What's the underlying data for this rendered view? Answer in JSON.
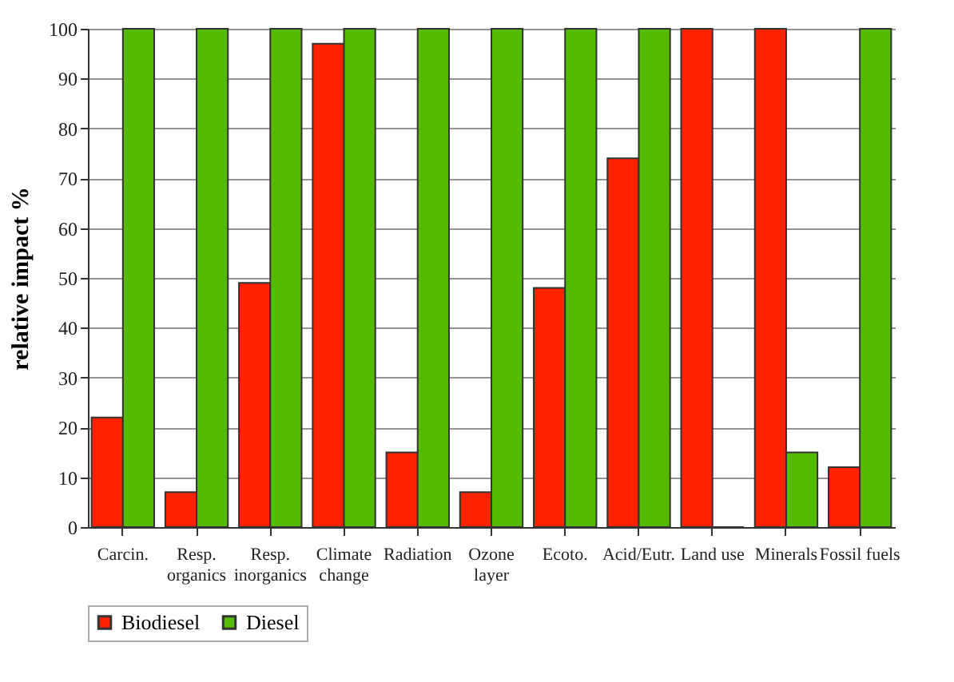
{
  "chart_data": {
    "type": "bar",
    "ylabel": "relative impact %",
    "categories": [
      "Carcin.",
      "Resp.\norganics",
      "Resp.\ninorganics",
      "Climate\nchange",
      "Radiation",
      "Ozone\nlayer",
      "Ecoto.",
      "Acid/Eutr.",
      "Land use",
      "Minerals",
      "Fossil fuels"
    ],
    "series": [
      {
        "name": "Biodiesel",
        "color": "#ff2200",
        "values": [
          22,
          7,
          49,
          97,
          15,
          7,
          48,
          74,
          100,
          100,
          12
        ]
      },
      {
        "name": "Diesel",
        "color": "#55bb00",
        "values": [
          100,
          100,
          100,
          100,
          100,
          100,
          100,
          100,
          0,
          15,
          100
        ]
      }
    ],
    "ylim": [
      0,
      100
    ],
    "yticks": [
      0,
      10,
      20,
      30,
      40,
      50,
      60,
      70,
      80,
      90,
      100
    ],
    "grid": "y",
    "legend": "bottom"
  }
}
